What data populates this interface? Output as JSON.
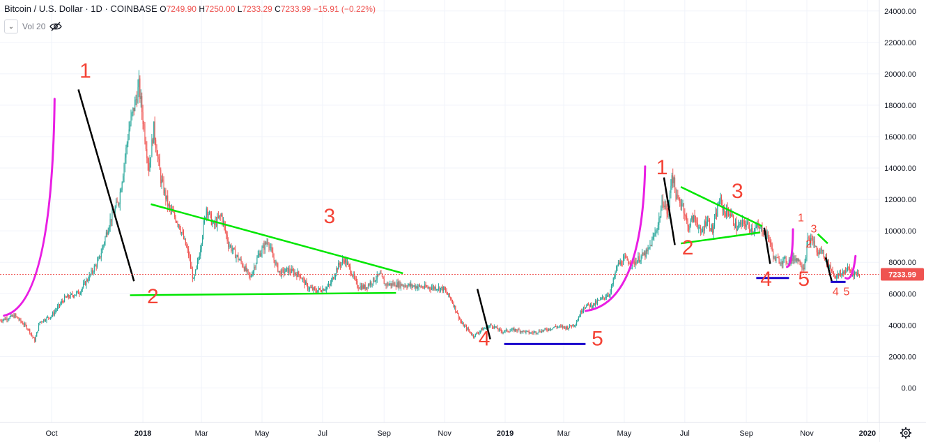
{
  "header": {
    "symbol": "Bitcoin / U.S. Dollar · 1D · COINBASE",
    "o_label": "O",
    "o": "7249.90",
    "h_label": "H",
    "h": "7250.00",
    "l_label": "L",
    "l": "7233.29",
    "c_label": "C",
    "c": "7233.99",
    "change": "−15.91 (−0.22%)",
    "volume_label": "Vol 20"
  },
  "colors": {
    "up": "#26a69a",
    "down": "#ef5350",
    "grid": "#f0f3fa",
    "wave_number": "#f44336",
    "arc": "#e91ee3",
    "trend": "#00e600",
    "impulse": "#000000",
    "support": "#1a00cc",
    "price_line": "#ef5350"
  },
  "icons": {
    "chevron": "chevron-down-icon",
    "visibility": "eye-crossed-icon",
    "settings": "gear-icon"
  },
  "chart_data": {
    "type": "candlestick",
    "title": "Bitcoin / U.S. Dollar · 1D · COINBASE",
    "x_ticks": [
      "Oct",
      "2018",
      "Mar",
      "May",
      "Jul",
      "Sep",
      "Nov",
      "2019",
      "Mar",
      "May",
      "Jul",
      "Sep",
      "Nov",
      "2020"
    ],
    "x_tick_days": [
      112,
      204,
      263,
      324,
      385,
      447,
      508,
      569,
      628,
      689,
      750,
      812,
      873,
      934
    ],
    "x_range_days": [
      60,
      946
    ],
    "y_ticks": [
      "0.00",
      "2000.00",
      "4000.00",
      "6000.00",
      "8000.00",
      "10000.00",
      "12000.00",
      "14000.00",
      "16000.00",
      "18000.00",
      "20000.00",
      "22000.00",
      "24000.00"
    ],
    "y_tick_values": [
      0,
      2000,
      4000,
      6000,
      8000,
      10000,
      12000,
      14000,
      16000,
      18000,
      20000,
      22000,
      24000
    ],
    "ylim": [
      -2200,
      24700
    ],
    "grid": true,
    "last_price": "7233.99",
    "last_price_value": 7233.99,
    "price_path": [
      [
        60,
        4300
      ],
      [
        75,
        4600
      ],
      [
        88,
        3800
      ],
      [
        95,
        3000
      ],
      [
        100,
        4200
      ],
      [
        112,
        4600
      ],
      [
        125,
        5700
      ],
      [
        140,
        6100
      ],
      [
        150,
        7100
      ],
      [
        160,
        8200
      ],
      [
        170,
        10500
      ],
      [
        180,
        12000
      ],
      [
        190,
        16500
      ],
      [
        200,
        19200
      ],
      [
        210,
        14000
      ],
      [
        215,
        16500
      ],
      [
        222,
        13300
      ],
      [
        230,
        11500
      ],
      [
        240,
        10500
      ],
      [
        250,
        8500
      ],
      [
        255,
        6800
      ],
      [
        260,
        8200
      ],
      [
        268,
        11500
      ],
      [
        275,
        10300
      ],
      [
        283,
        11000
      ],
      [
        290,
        9200
      ],
      [
        297,
        8500
      ],
      [
        303,
        8000
      ],
      [
        312,
        7000
      ],
      [
        320,
        8400
      ],
      [
        330,
        9400
      ],
      [
        335,
        8300
      ],
      [
        342,
        7300
      ],
      [
        350,
        7500
      ],
      [
        362,
        7200
      ],
      [
        370,
        6400
      ],
      [
        378,
        6200
      ],
      [
        385,
        6300
      ],
      [
        392,
        6500
      ],
      [
        400,
        7700
      ],
      [
        407,
        8200
      ],
      [
        413,
        7500
      ],
      [
        420,
        6500
      ],
      [
        428,
        6400
      ],
      [
        435,
        6800
      ],
      [
        443,
        7200
      ],
      [
        448,
        6600
      ],
      [
        460,
        6600
      ],
      [
        475,
        6500
      ],
      [
        490,
        6400
      ],
      [
        500,
        6400
      ],
      [
        507,
        6300
      ],
      [
        515,
        5600
      ],
      [
        525,
        4100
      ],
      [
        530,
        3800
      ],
      [
        537,
        3300
      ],
      [
        545,
        3700
      ],
      [
        555,
        4000
      ],
      [
        565,
        3600
      ],
      [
        580,
        3700
      ],
      [
        595,
        3500
      ],
      [
        610,
        3700
      ],
      [
        620,
        3900
      ],
      [
        632,
        3850
      ],
      [
        640,
        4100
      ],
      [
        648,
        5200
      ],
      [
        658,
        5300
      ],
      [
        665,
        5600
      ],
      [
        675,
        6100
      ],
      [
        682,
        7800
      ],
      [
        690,
        8200
      ],
      [
        697,
        7900
      ],
      [
        705,
        8300
      ],
      [
        712,
        8600
      ],
      [
        718,
        9500
      ],
      [
        723,
        10400
      ],
      [
        728,
        12000
      ],
      [
        733,
        11000
      ],
      [
        737,
        13700
      ],
      [
        742,
        12000
      ],
      [
        748,
        11700
      ],
      [
        753,
        10200
      ],
      [
        758,
        10800
      ],
      [
        762,
        10700
      ],
      [
        766,
        9700
      ],
      [
        772,
        10800
      ],
      [
        778,
        10000
      ],
      [
        785,
        12000
      ],
      [
        790,
        11200
      ],
      [
        795,
        11200
      ],
      [
        802,
        10200
      ],
      [
        810,
        10500
      ],
      [
        818,
        10100
      ],
      [
        823,
        10200
      ],
      [
        830,
        10000
      ],
      [
        835,
        9500
      ],
      [
        840,
        8200
      ],
      [
        847,
        8100
      ],
      [
        855,
        8100
      ],
      [
        862,
        8300
      ],
      [
        870,
        7700
      ],
      [
        874,
        9400
      ],
      [
        880,
        9300
      ],
      [
        884,
        8500
      ],
      [
        888,
        8800
      ],
      [
        892,
        8200
      ],
      [
        897,
        7600
      ],
      [
        902,
        7100
      ],
      [
        907,
        7200
      ],
      [
        910,
        7400
      ],
      [
        915,
        7600
      ],
      [
        918,
        7300
      ],
      [
        923,
        7300
      ],
      [
        926,
        7234
      ]
    ],
    "annotations": {
      "labels": [
        {
          "text": "1",
          "x": 146,
          "y": 19750,
          "size": "large"
        },
        {
          "text": "2",
          "x": 214,
          "y": 5400,
          "size": "large"
        },
        {
          "text": "3",
          "x": 392,
          "y": 10500,
          "size": "large"
        },
        {
          "text": "4",
          "x": 548,
          "y": 2700,
          "size": "large"
        },
        {
          "text": "5",
          "x": 662,
          "y": 2700,
          "size": "large"
        },
        {
          "text": "1",
          "x": 727,
          "y": 13600,
          "size": "large"
        },
        {
          "text": "2",
          "x": 753,
          "y": 8500,
          "size": "large"
        },
        {
          "text": "3",
          "x": 803,
          "y": 12100,
          "size": "large"
        },
        {
          "text": "4",
          "x": 832,
          "y": 6500,
          "size": "large"
        },
        {
          "text": "5",
          "x": 870,
          "y": 6500,
          "size": "large"
        },
        {
          "text": "1",
          "x": 867,
          "y": 10600,
          "size": "small"
        },
        {
          "text": "2",
          "x": 875,
          "y": 8950,
          "size": "small"
        },
        {
          "text": "3",
          "x": 880,
          "y": 9900,
          "size": "small"
        },
        {
          "text": "4",
          "x": 902,
          "y": 5900,
          "size": "small"
        },
        {
          "text": "5",
          "x": 913,
          "y": 5900,
          "size": "small"
        }
      ],
      "impulse_lines": [
        [
          [
            139,
            19000
          ],
          [
            195,
            6800
          ]
        ],
        [
          [
            729,
            13400
          ],
          [
            740,
            9100
          ]
        ],
        [
          [
            830,
            10200
          ],
          [
            836,
            7900
          ]
        ],
        [
          [
            541,
            6300
          ],
          [
            554,
            3100
          ]
        ],
        [
          [
            892,
            8300
          ],
          [
            898,
            6800
          ]
        ]
      ],
      "trend_lines": [
        [
          [
            212,
            11700
          ],
          [
            466,
            7300
          ]
        ],
        [
          [
            191,
            5900
          ],
          [
            459,
            6050
          ]
        ],
        [
          [
            746,
            12800
          ],
          [
            828,
            10300
          ]
        ],
        [
          [
            746,
            9200
          ],
          [
            826,
            9900
          ]
        ],
        [
          [
            884,
            9800
          ],
          [
            894,
            9200
          ]
        ]
      ],
      "support_lines": [
        [
          [
            568,
            2800
          ],
          [
            650,
            2800
          ]
        ],
        [
          [
            822,
            7000
          ],
          [
            855,
            7000
          ]
        ],
        [
          [
            897,
            6750
          ],
          [
            912,
            6750
          ]
        ]
      ],
      "arcs": [
        {
          "from": [
            64,
            4600
          ],
          "to": [
            115,
            18400
          ],
          "bend": "down"
        },
        {
          "from": [
            650,
            4900
          ],
          "to": [
            710,
            14100
          ],
          "bend": "down"
        },
        {
          "from": [
            853,
            7700
          ],
          "to": [
            859,
            10100
          ],
          "bend": "down"
        },
        {
          "from": [
            912,
            7000
          ],
          "to": [
            922,
            8400
          ],
          "bend": "up"
        }
      ]
    }
  }
}
